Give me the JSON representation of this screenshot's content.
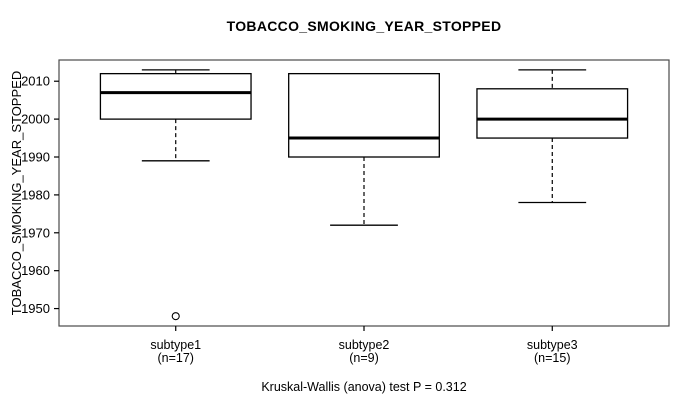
{
  "chart_data": {
    "type": "box",
    "title": "TOBACCO_SMOKING_YEAR_STOPPED",
    "ylabel": "TOBACCO_SMOKING_YEAR_STOPPED",
    "caption": "Kruskal-Wallis (anova) test P = 0.312",
    "y_ticks": [
      1950,
      1960,
      1970,
      1980,
      1990,
      2000,
      2010
    ],
    "ylim": [
      1945.4,
      2015.6
    ],
    "grid": false,
    "legend": "none",
    "categories": [
      {
        "label": "subtype1",
        "n_label": "(n=17)"
      },
      {
        "label": "subtype2",
        "n_label": "(n=9)"
      },
      {
        "label": "subtype3",
        "n_label": "(n=15)"
      }
    ],
    "series": [
      {
        "name": "subtype1",
        "n": 17,
        "whisker_low": 1989,
        "q1": 2000,
        "median": 2007,
        "q3": 2012,
        "whisker_high": 2013,
        "outliers": [
          1948
        ]
      },
      {
        "name": "subtype2",
        "n": 9,
        "whisker_low": 1972,
        "q1": 1990,
        "median": 1995,
        "q3": 2012,
        "whisker_high": 2012,
        "outliers": []
      },
      {
        "name": "subtype3",
        "n": 15,
        "whisker_low": 1978,
        "q1": 1995,
        "median": 2000,
        "q3": 2008,
        "whisker_high": 2013,
        "outliers": []
      }
    ],
    "colors": {
      "box_fill": "#ffffff",
      "line": "#000000",
      "plot_border": "#4a4a4a",
      "text": "#000000"
    }
  }
}
